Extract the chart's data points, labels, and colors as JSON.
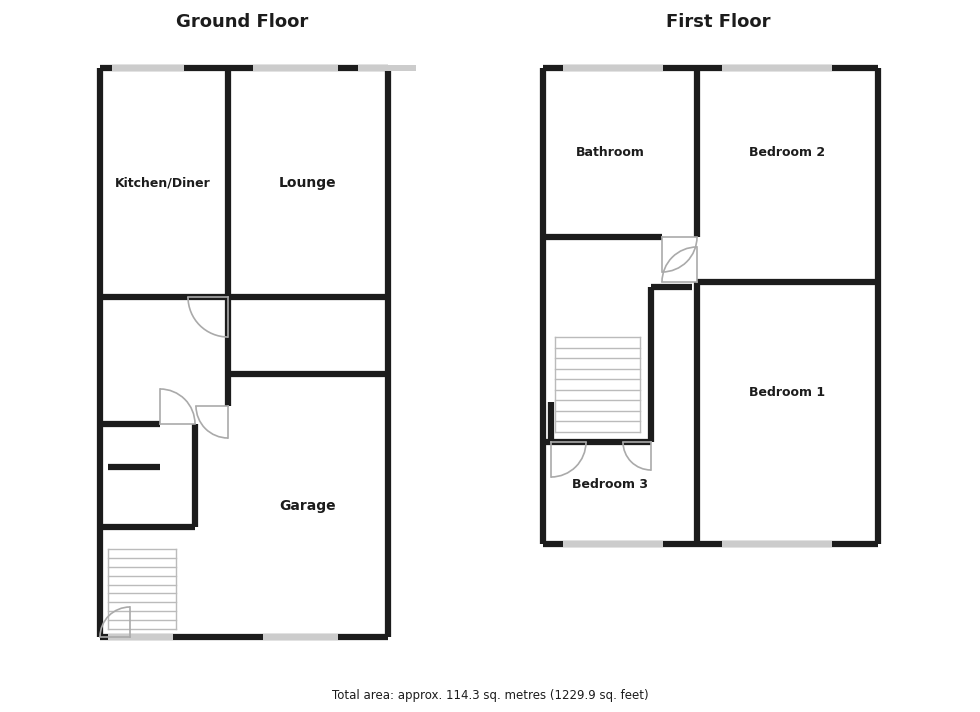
{
  "title_ground": "Ground Floor",
  "title_first": "First Floor",
  "footer": "Total area: approx. 114.3 sq. metres (1229.9 sq. feet)",
  "wall_color": "#1c1c1c",
  "door_color": "#aaaaaa",
  "win_color": "#cccccc",
  "stair_color": "#bbbbbb",
  "lw_wall": 4.5,
  "lw_door": 1.2,
  "lw_stair": 1.0
}
